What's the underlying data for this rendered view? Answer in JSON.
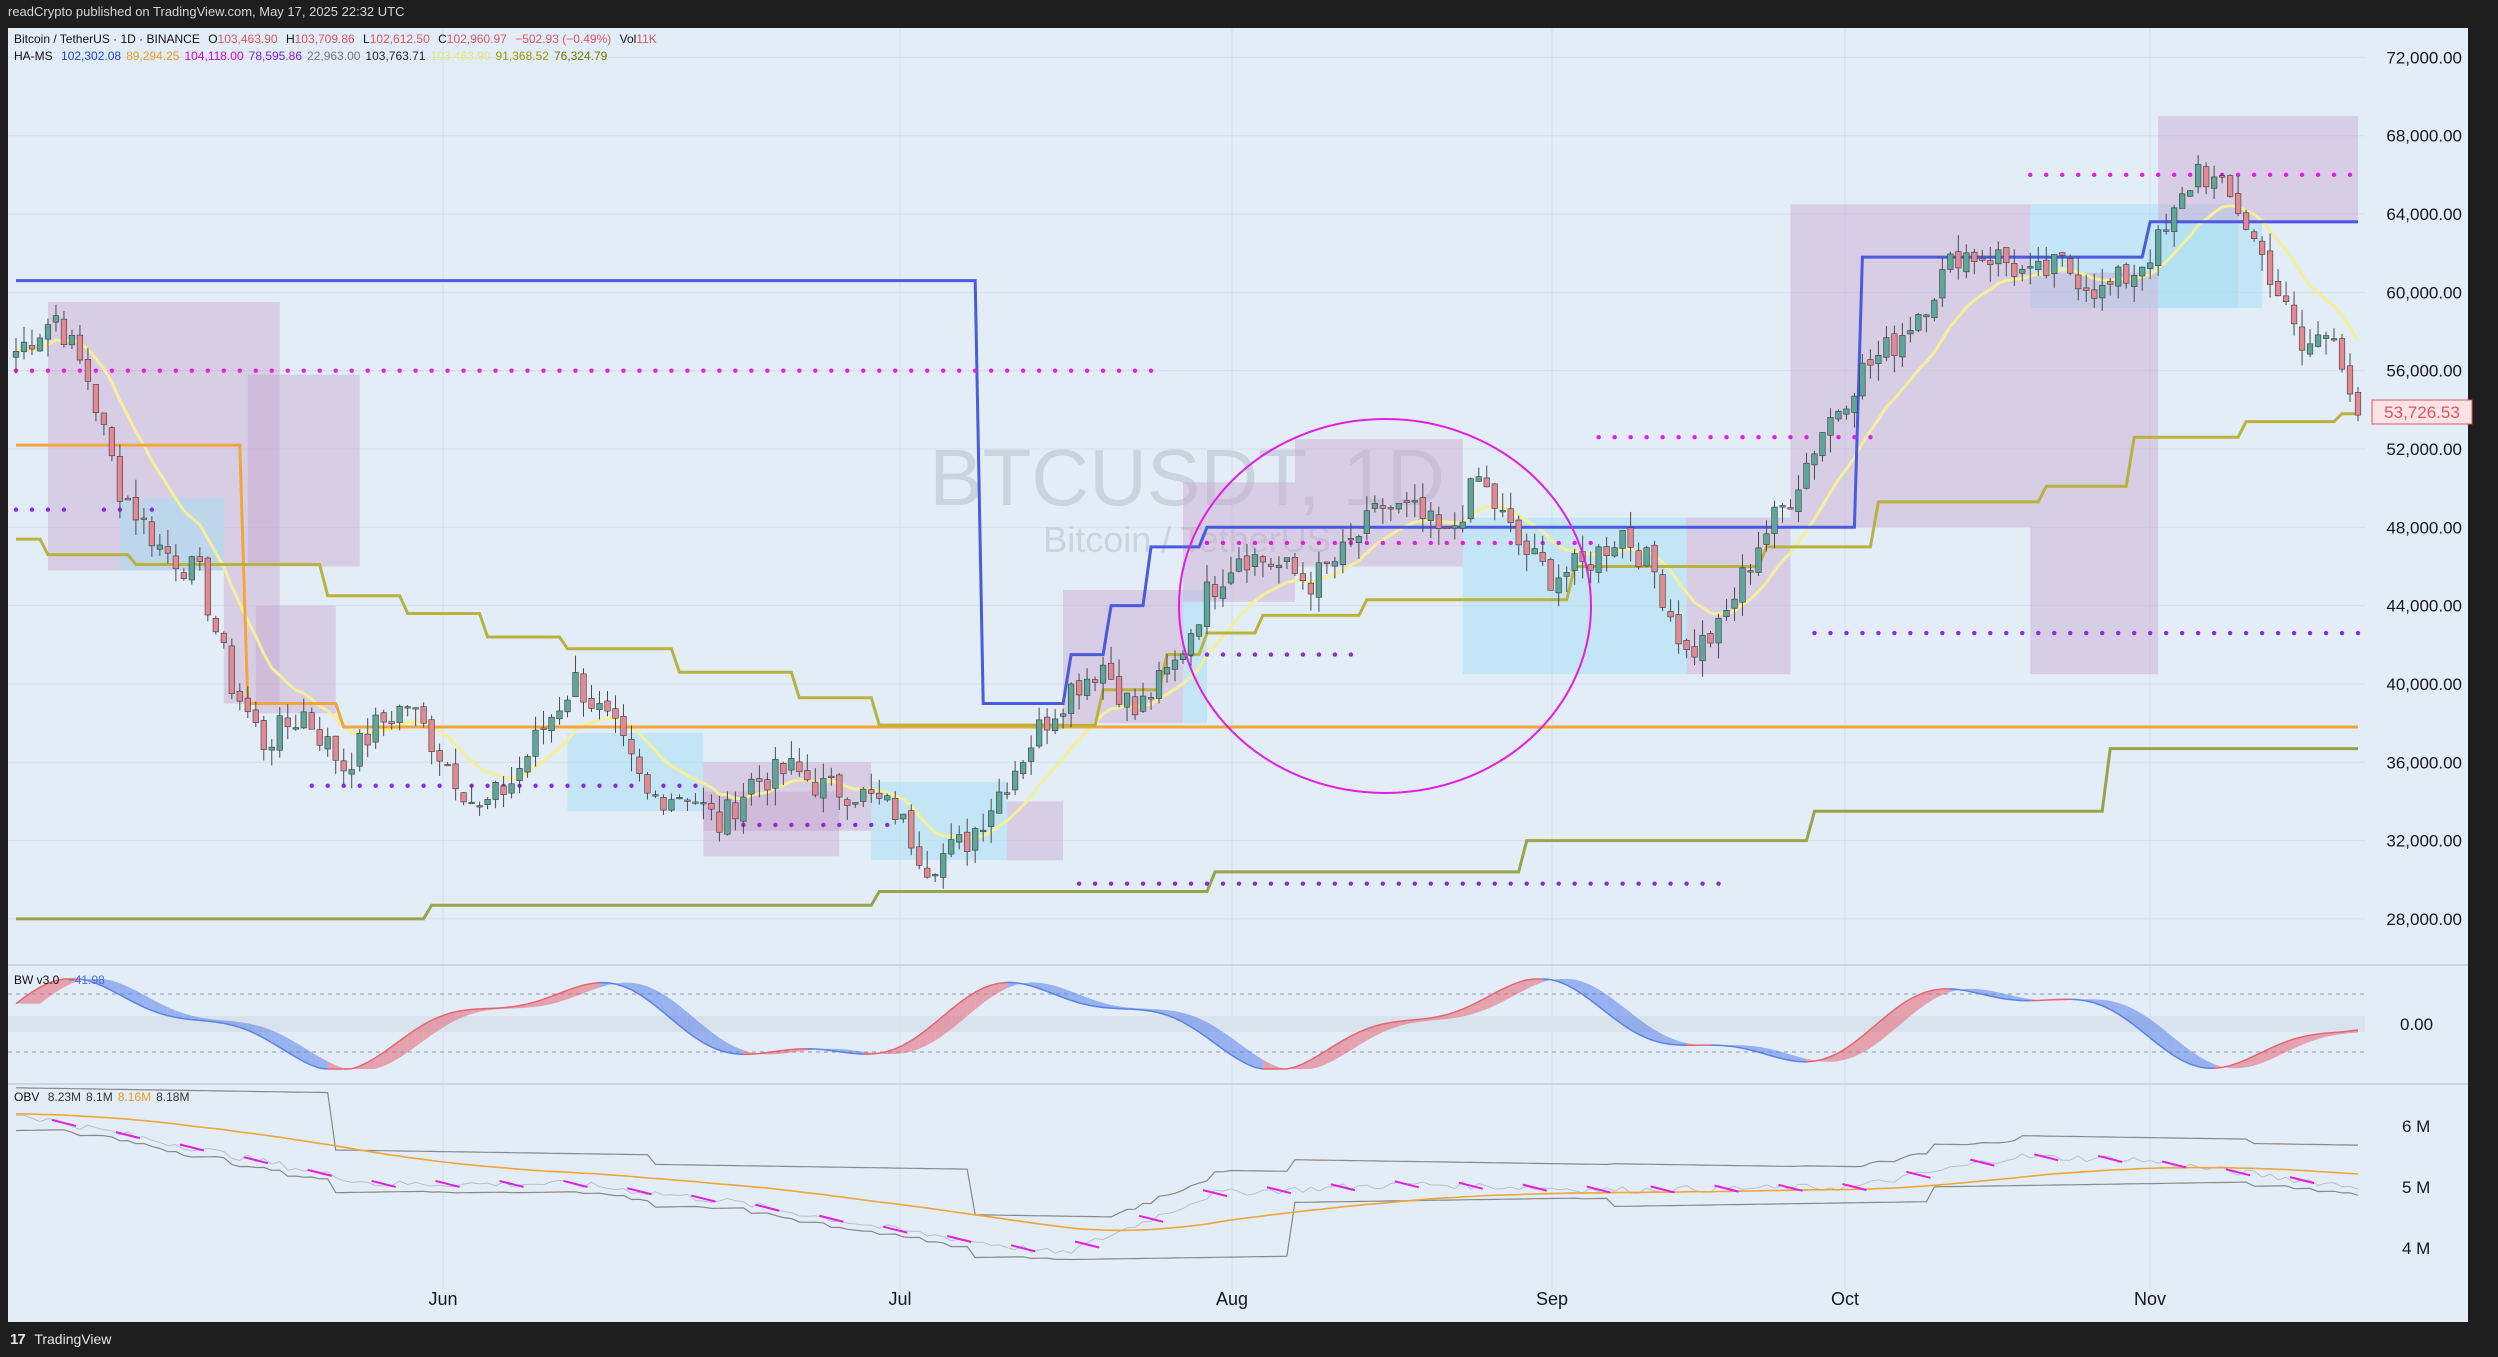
{
  "header": {
    "published_text": "readCrypto published on TradingView.com, May 17, 2025 22:32 UTC"
  },
  "footer": {
    "brand_logo": "17",
    "brand": "TradingView"
  },
  "legend": {
    "symbol_line": "Bitcoin / TetherUS · 1D · BINANCE",
    "ohlc": {
      "o_label": "O",
      "o": "103,463.90",
      "h_label": "H",
      "h": "103,709.86",
      "l_label": "L",
      "l": "102,612.50",
      "c_label": "C",
      "c": "102,960.97",
      "change": "−502.93 (−0.49%)",
      "vol_label": "Vol",
      "vol": "11K"
    },
    "hams": {
      "label": "HA-MS",
      "values": [
        "102,302.08",
        "89,294.25",
        "104,118.00",
        "78,595.86",
        "22,963.00",
        "103,763.71",
        "103,463.90",
        "91,368.52",
        "76,324.79"
      ],
      "colors": [
        "#1e40d8",
        "#f29b1f",
        "#d500d5",
        "#7a1fd6",
        "#777777",
        "#222222",
        "#e8e873",
        "#9a9a00",
        "#6b7a00"
      ]
    },
    "bw": {
      "label": "BW v3.0",
      "value": "−41.98"
    },
    "obv": {
      "label": "OBV",
      "values": [
        "8.23M",
        "8.1M",
        "8.16M",
        "8.18M"
      ],
      "colors": [
        "#333333",
        "#333333",
        "#f29b1f",
        "#333333"
      ]
    }
  },
  "watermark": {
    "main": "BTCUSDT, 1D",
    "sub": "Bitcoin / TetherUS"
  },
  "price_label": {
    "value": "53,726.53",
    "color": "#e05560"
  },
  "colors": {
    "bg": "#e3edf8",
    "up": "#5fa59a",
    "down": "#e28a93",
    "blue": "#4a5be0",
    "orange": "#f2a53a",
    "olive": "#b9b23e",
    "olive_dark": "#9aa24a",
    "magenta": "#e21ee2",
    "purple": "#8a2be2",
    "yellow": "#f3ef9a",
    "box_purple": "#c7a6cf",
    "box_cyan": "#a9dff2",
    "bw_red": "#e56572",
    "bw_blue": "#5a82e8",
    "circle": "#e21ee2"
  },
  "chart_data": [
    {
      "type": "candlestick",
      "title": "Bitcoin / TetherUS · 1D · BINANCE",
      "x_axis": {
        "labels": [
          "Jun",
          "Jul",
          "Aug",
          "Sep",
          "Oct",
          "Nov"
        ]
      },
      "y_axis": {
        "ticks": [
          28000,
          32000,
          36000,
          40000,
          44000,
          48000,
          52000,
          56000,
          60000,
          64000,
          68000,
          72000
        ],
        "tick_labels": [
          "28,000.00",
          "32,000.00",
          "36,000.00",
          "40,000.00",
          "44,000.00",
          "48,000.00",
          "52,000.00",
          "56,000.00",
          "60,000.00",
          "64,000.00",
          "68,000.00",
          "72,000.00"
        ],
        "range": [
          25800,
          73500
        ]
      },
      "series": [
        {
          "kind": "ohlc",
          "anchors": [
            [
              0,
              57000
            ],
            [
              5,
              58800
            ],
            [
              9,
              55600
            ],
            [
              13,
              50000
            ],
            [
              18,
              47000
            ],
            [
              23,
              45500
            ],
            [
              27,
              40000
            ],
            [
              31,
              37000
            ],
            [
              36,
              38500
            ],
            [
              41,
              35800
            ],
            [
              45,
              37800
            ],
            [
              49,
              39000
            ],
            [
              53,
              36500
            ],
            [
              58,
              33500
            ],
            [
              62,
              35000
            ],
            [
              66,
              37800
            ],
            [
              70,
              40200
            ],
            [
              75,
              37500
            ],
            [
              79,
              34200
            ],
            [
              84,
              34500
            ],
            [
              88,
              32800
            ],
            [
              92,
              35000
            ],
            [
              97,
              35600
            ],
            [
              101,
              34700
            ],
            [
              105,
              34500
            ],
            [
              110,
              33500
            ],
            [
              114,
              30800
            ],
            [
              119,
              32000
            ],
            [
              123,
              34500
            ],
            [
              128,
              37700
            ],
            [
              132,
              39800
            ],
            [
              136,
              41000
            ],
            [
              140,
              38500
            ],
            [
              145,
              41000
            ],
            [
              149,
              44600
            ],
            [
              153,
              46700
            ],
            [
              157,
              46200
            ],
            [
              162,
              45200
            ],
            [
              166,
              46600
            ],
            [
              171,
              49100
            ],
            [
              175,
              48700
            ],
            [
              179,
              47400
            ],
            [
              183,
              50500
            ],
            [
              188,
              47100
            ],
            [
              192,
              45500
            ],
            [
              196,
              46000
            ],
            [
              201,
              47800
            ],
            [
              205,
              45700
            ],
            [
              209,
              41500
            ],
            [
              213,
              42700
            ],
            [
              218,
              47200
            ],
            [
              222,
              49600
            ],
            [
              226,
              53000
            ],
            [
              231,
              56000
            ],
            [
              235,
              57400
            ],
            [
              239,
              59600
            ],
            [
              243,
              62000
            ],
            [
              248,
              61800
            ],
            [
              252,
              60700
            ],
            [
              256,
              61400
            ],
            [
              261,
              60000
            ],
            [
              265,
              61100
            ],
            [
              269,
              63000
            ],
            [
              273,
              66400
            ],
            [
              278,
              64300
            ],
            [
              282,
              61000
            ],
            [
              286,
              57000
            ],
            [
              290,
              58300
            ],
            [
              292,
              55000
            ],
            [
              293,
              53727
            ]
          ]
        },
        {
          "name": "HA-MS HA-High",
          "color": "#4a5be0",
          "points": [
            [
              0,
              60600
            ],
            [
              120,
              60600
            ],
            [
              121,
              39000
            ],
            [
              131,
              39000
            ],
            [
              132,
              41500
            ],
            [
              136,
              41500
            ],
            [
              137,
              44000
            ],
            [
              141,
              44000
            ],
            [
              142,
              47000
            ],
            [
              148,
              47000
            ],
            [
              149,
              48000
            ],
            [
              225,
              48000
            ],
            [
              226,
              48000
            ],
            [
              230,
              48000
            ],
            [
              231,
              61800
            ],
            [
              266,
              61800
            ],
            [
              267,
              63600
            ],
            [
              293,
              63600
            ]
          ]
        },
        {
          "name": "HA-MS orange",
          "color": "#f2a53a",
          "points": [
            [
              0,
              52200
            ],
            [
              28,
              52200
            ],
            [
              29,
              39000
            ],
            [
              40,
              39000
            ],
            [
              41,
              37800
            ],
            [
              293,
              37800
            ]
          ]
        },
        {
          "name": "HA-MS MS-Signal",
          "color": "#b9b23e",
          "points": [
            [
              0,
              47400
            ],
            [
              3,
              47400
            ],
            [
              4,
              46600
            ],
            [
              14,
              46600
            ],
            [
              15,
              46100
            ],
            [
              38,
              46100
            ],
            [
              39,
              44500
            ],
            [
              48,
              44500
            ],
            [
              49,
              43600
            ],
            [
              58,
              43600
            ],
            [
              59,
              42400
            ],
            [
              68,
              42400
            ],
            [
              69,
              41800
            ],
            [
              82,
              41800
            ],
            [
              83,
              40600
            ],
            [
              97,
              40600
            ],
            [
              98,
              39300
            ],
            [
              107,
              39300
            ],
            [
              108,
              37900
            ],
            [
              135,
              37900
            ],
            [
              136,
              39700
            ],
            [
              143,
              39700
            ],
            [
              144,
              41500
            ],
            [
              148,
              41500
            ],
            [
              149,
              42600
            ],
            [
              155,
              42600
            ],
            [
              156,
              43500
            ],
            [
              168,
              43500
            ],
            [
              169,
              44300
            ],
            [
              194,
              44300
            ],
            [
              195,
              46000
            ],
            [
              202,
              46000
            ],
            [
              203,
              46000
            ],
            [
              218,
              46000
            ],
            [
              219,
              47000
            ],
            [
              232,
              47000
            ],
            [
              233,
              49300
            ],
            [
              253,
              49300
            ],
            [
              254,
              50100
            ],
            [
              264,
              50100
            ],
            [
              265,
              52600
            ],
            [
              278,
              52600
            ],
            [
              279,
              53400
            ],
            [
              290,
              53400
            ],
            [
              291,
              53800
            ],
            [
              293,
              53800
            ]
          ]
        },
        {
          "name": "HA-MS Lowest",
          "color": "#9aa24a",
          "points": [
            [
              0,
              28000
            ],
            [
              51,
              28000
            ],
            [
              52,
              28700
            ],
            [
              107,
              28700
            ],
            [
              108,
              29400
            ],
            [
              149,
              29400
            ],
            [
              150,
              30400
            ],
            [
              188,
              30400
            ],
            [
              189,
              32000
            ],
            [
              224,
              32000
            ],
            [
              225,
              33500
            ],
            [
              261,
              33500
            ],
            [
              262,
              36700
            ],
            [
              293,
              36700
            ]
          ]
        },
        {
          "name": "HA-MS HA-Low upper dots",
          "color": "#e21ee2",
          "points": [
            [
              0,
              56000
            ],
            [
              142,
              56000
            ],
            [
              198,
              52600
            ],
            [
              233,
              52600
            ],
            [
              252,
              66000
            ],
            [
              293,
              66000
            ]
          ]
        },
        {
          "name": "HA-MS HA-Low lower dots",
          "color": "#8a2be2",
          "points": [
            [
              0,
              48900
            ],
            [
              18,
              48900
            ],
            [
              37,
              34800
            ],
            [
              86,
              34800
            ],
            [
              133,
              29800
            ],
            [
              213,
              29800
            ],
            [
              225,
              42600
            ],
            [
              293,
              42600
            ]
          ]
        }
      ]
    },
    {
      "type": "area",
      "title": "BW v3.0",
      "y_axis": {
        "tick_labels": [
          "0.00"
        ]
      },
      "series": [
        {
          "name": "BW v3.0",
          "last_value": -41.98
        }
      ]
    },
    {
      "type": "line",
      "title": "OBV",
      "y_axis": {
        "tick_labels": [
          "4 M",
          "5 M",
          "6 M"
        ],
        "ticks": [
          4,
          5,
          6
        ]
      },
      "series": [
        {
          "name": "OBV",
          "anchors": [
            [
              0,
              6.2
            ],
            [
              20,
              5.7
            ],
            [
              45,
              5.05
            ],
            [
              70,
              5.05
            ],
            [
              90,
              4.75
            ],
            [
              110,
              4.3
            ],
            [
              131,
              3.9
            ],
            [
              150,
              4.9
            ],
            [
              175,
              5.05
            ],
            [
              200,
              4.95
            ],
            [
              230,
              5.0
            ],
            [
              250,
              5.5
            ],
            [
              265,
              5.45
            ],
            [
              293,
              5.0
            ]
          ]
        }
      ]
    }
  ]
}
